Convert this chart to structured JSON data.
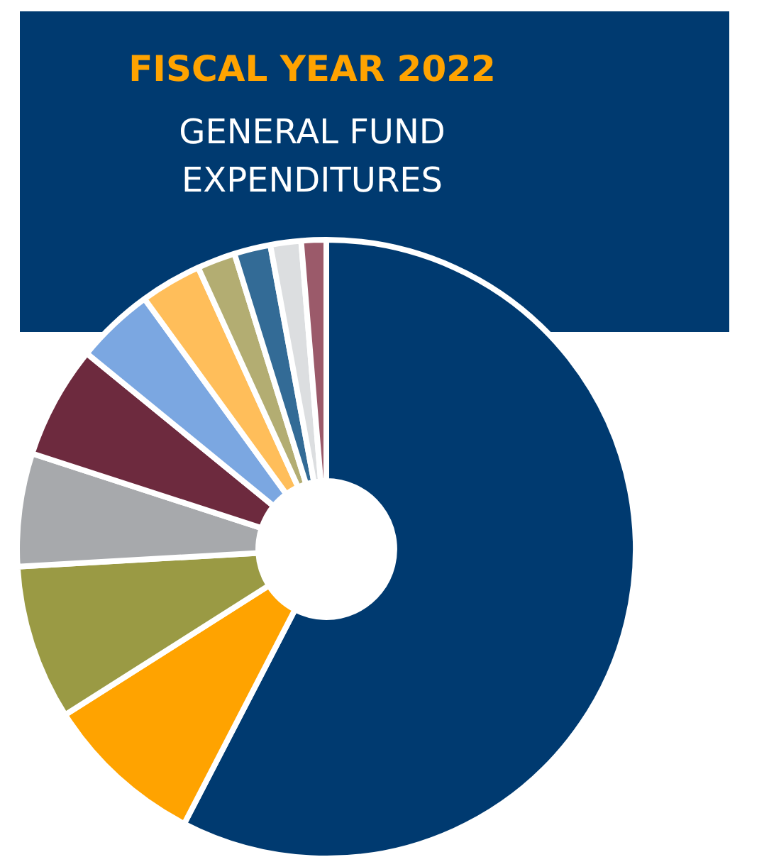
{
  "chart_data": {
    "type": "donut",
    "title": "FISCAL YEAR 2022",
    "subtitle": "GENERAL FUND EXPENDITURES",
    "categories": [
      null,
      null,
      null,
      null,
      null,
      null,
      null,
      null,
      null,
      null,
      null
    ],
    "values": [
      57.6,
      8.4,
      8.1,
      5.9,
      5.9,
      4.1,
      3.2,
      2.0,
      1.9,
      1.6,
      1.3
    ],
    "colors": [
      "#003a70",
      "#ffa300",
      "#9a9a44",
      "#a7a9ac",
      "#6d2a3e",
      "#7ba7e1",
      "#ffbe5a",
      "#b3ad72",
      "#336b96",
      "#dcdee0",
      "#9b5a6a"
    ]
  }
}
